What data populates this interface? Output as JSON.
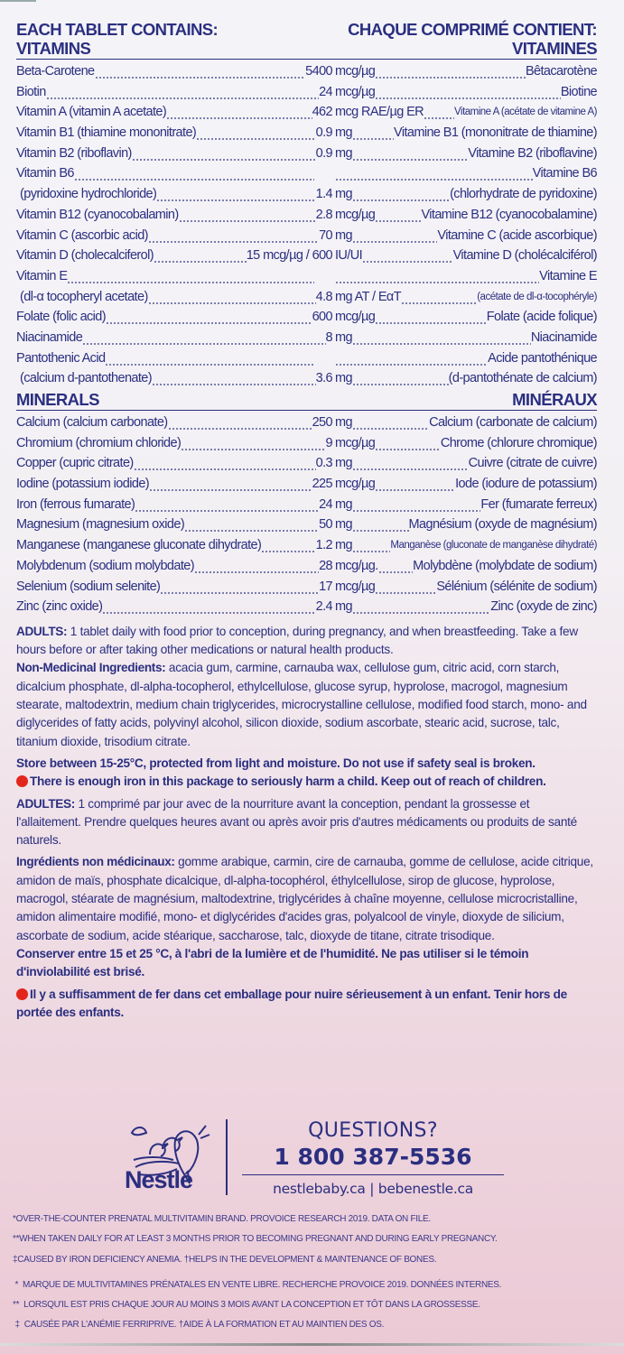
{
  "header": {
    "left": "EACH TABLET CONTAINS:",
    "right": "CHAQUE COMPRIMÉ CONTIENT:"
  },
  "vitamins": {
    "title_en": "VITAMINS",
    "title_fr": "VITAMINES",
    "rows": [
      {
        "en": "Beta-Carotene",
        "num": "5400",
        "unit": "mcg/µg",
        "fr": "Bêtacarotène"
      },
      {
        "en": "Biotin",
        "num": "24",
        "unit": "mcg/µg",
        "fr": "Biotine"
      },
      {
        "en": "Vitamin A (vitamin A acetate)",
        "num": "462",
        "unit": "mcg RAE/µg ER",
        "fr": "Vitamine A (acétate de vitamine A)",
        "small": true
      },
      {
        "en": "Vitamin B1 (thiamine mononitrate)",
        "num": "0.9",
        "unit": "mg",
        "fr": "Vitamine B1 (mononitrate de thiamine)"
      },
      {
        "en": "Vitamin B2 (riboflavin)",
        "num": "0.9",
        "unit": "mg",
        "fr": "Vitamine B2 (riboflavine)"
      },
      {
        "en": "Vitamin B6",
        "num": "",
        "unit": "",
        "fr": "Vitamine B6"
      },
      {
        "en": "(pyridoxine hydrochloride)",
        "num": "1.4",
        "unit": "mg",
        "fr": "(chlorhydrate de pyridoxine)",
        "indent": true
      },
      {
        "en": "Vitamin B12 (cyanocobalamin)",
        "num": "2.8",
        "unit": "mcg/µg",
        "fr": "Vitamine B12 (cyanocobalamine)"
      },
      {
        "en": "Vitamin C (ascorbic acid)",
        "num": "70",
        "unit": "mg",
        "fr": "Vitamine C (acide ascorbique)"
      },
      {
        "en": "Vitamin D (cholecalciferol)",
        "num": "15 mcg/µg / 600",
        "unit": "IU/UI",
        "fr": "Vitamine D (cholécalciférol)"
      },
      {
        "en": "Vitamin E",
        "num": "",
        "unit": "",
        "fr": "Vitamine E"
      },
      {
        "en": "(dl-α tocopheryl acetate)",
        "num": "4.8",
        "unit": "mg AT / EαT",
        "fr": "(acétate de dl-α-tocophéryle)",
        "indent": true,
        "small": true
      },
      {
        "en": "Folate (folic acid)",
        "num": "600",
        "unit": "mcg/µg",
        "fr": "Folate (acide folique)"
      },
      {
        "en": "Niacinamide",
        "num": "8",
        "unit": "mg",
        "fr": "Niacinamide"
      },
      {
        "en": "Pantothenic Acid",
        "num": "",
        "unit": "",
        "fr": "Acide pantothénique"
      },
      {
        "en": "(calcium d-pantothenate)",
        "num": "3.6",
        "unit": "mg",
        "fr": "(d-pantothénate de calcium)",
        "indent": true
      }
    ]
  },
  "minerals": {
    "title_en": "MINERALS",
    "title_fr": "MINÉRAUX",
    "rows": [
      {
        "en": "Calcium (calcium carbonate)",
        "num": "250",
        "unit": "mg",
        "fr": "Calcium (carbonate de calcium)"
      },
      {
        "en": "Chromium (chromium chloride)",
        "num": "9",
        "unit": "mcg/µg",
        "fr": "Chrome (chlorure chromique)"
      },
      {
        "en": "Copper (cupric citrate)",
        "num": "0.3",
        "unit": "mg",
        "fr": "Cuivre (citrate de cuivre)"
      },
      {
        "en": "Iodine (potassium iodide)",
        "num": "225",
        "unit": "mcg/µg",
        "fr": "Iode (iodure de potassium)"
      },
      {
        "en": "Iron (ferrous fumarate)",
        "num": "24",
        "unit": "mg",
        "fr": "Fer (fumarate ferreux)"
      },
      {
        "en": "Magnesium (magnesium oxide)",
        "num": "50",
        "unit": "mg",
        "fr": "Magnésium (oxyde de magnésium)"
      },
      {
        "en": "Manganese (manganese gluconate dihydrate)",
        "num": "1.2",
        "unit": "mg",
        "fr": "Manganèse (gluconate de manganèse dihydraté)",
        "small": true
      },
      {
        "en": "Molybdenum (sodium molybdate)",
        "num": "28",
        "unit": "mcg/µg.",
        "fr": "Molybdène (molybdate de sodium)"
      },
      {
        "en": "Selenium (sodium selenite)",
        "num": "17",
        "unit": "mcg/µg",
        "fr": "Sélénium (sélénite de sodium)"
      },
      {
        "en": "Zinc (zinc oxide)",
        "num": "2.4",
        "unit": "mg",
        "fr": "Zinc (oxyde de zinc)"
      }
    ]
  },
  "english": {
    "adults_label": "ADULTS:",
    "adults_text": " 1 tablet daily with food prior to conception, during pregnancy, and when breastfeeding. Take a few hours before or after taking other medications or natural health products.",
    "nmi_label": "Non-Medicinal Ingredients:",
    "nmi_text": " acacia gum, carmine, carnauba wax, cellulose gum, citric acid, corn starch, dicalcium phosphate, dl-alpha-tocopherol, ethylcellulose, glucose syrup, hyprolose, macrogol, magnesium stearate, maltodextrin, medium chain triglycerides, microcrystalline cellulose, modified food starch, mono- and diglycerides of fatty acids, polyvinyl alcohol, silicon dioxide, sodium ascorbate, stearic acid, sucrose, talc, titanium dioxide, trisodium citrate.",
    "storage": "Store between 15-25°C, protected from light and moisture. Do not use if safety seal is broken.",
    "warning": "There is enough iron in this package to seriously harm a child. Keep out of reach of children."
  },
  "french": {
    "adults_label": "ADULTES:",
    "adults_text": " 1 comprimé par jour avec de la nourriture avant la conception, pendant la grossesse et l'allaitement. Prendre quelques heures avant ou après avoir pris d'autres médicaments ou produits de santé naturels.",
    "nmi_label": "Ingrédients non médicinaux:",
    "nmi_text": " gomme arabique, carmin, cire de carnauba, gomme de cellulose, acide citrique, amidon de maïs, phosphate dicalcique, dl-alpha-tocophérol, éthylcellulose, sirop de glucose, hyprolose, macrogol, stéarate de magnésium, maltodextrine, triglycérides à chaîne moyenne, cellulose microcristalline, amidon alimentaire modifié, mono- et diglycérides d'acides gras, polyalcool de vinyle, dioxyde de silicium, ascorbate de sodium, acide stéarique, saccharose, talc, dioxyde de titane, citrate trisodique.",
    "storage": "Conserver entre 15 et 25 °C, à l'abri de la lumière et de l'humidité. Ne pas utiliser si le témoin d'inviolabilité est brisé.",
    "warning": "Il y a suffisamment de fer dans cet emballage pour nuire sérieusement à un enfant. Tenir hors de portée des enfants."
  },
  "brand": {
    "logo_text": "Nestlé",
    "questions": "QUESTIONS?",
    "phone": "1 800 387-5536",
    "websites": "nestlebaby.ca | bebenestle.ca"
  },
  "footnotes_en": [
    "*OVER-THE-COUNTER PRENATAL MULTIVITAMIN BRAND. PROVOICE RESEARCH 2019. DATA ON FILE.",
    "**WHEN TAKEN DAILY FOR AT LEAST 3 MONTHS PRIOR TO BECOMING PREGNANT AND DURING EARLY PREGNANCY.",
    "‡CAUSED BY IRON DEFICIENCY ANEMIA. †HELPS IN THE DEVELOPMENT & MAINTENANCE OF BONES."
  ],
  "footnotes_fr": [
    " *  MARQUE DE MULTIVITAMINES PRÉNATALES EN VENTE LIBRE. RECHERCHE PROVOICE 2019. DONNÉES INTERNES.",
    "**  LORSQU'IL EST PRIS CHAQUE JOUR AU MOINS 3 MOIS AVANT LA CONCEPTION ET TÔT DANS LA GROSSESSE.",
    " ‡  CAUSÉE PAR L'ANÉMIE FERRIPRIVE. †AIDE À LA FORMATION ET AU MAINTIEN DES OS."
  ],
  "colors": {
    "text": "#2b2f80",
    "warning_dot": "#e2261c",
    "background_bottom": "#ebc9d5"
  }
}
